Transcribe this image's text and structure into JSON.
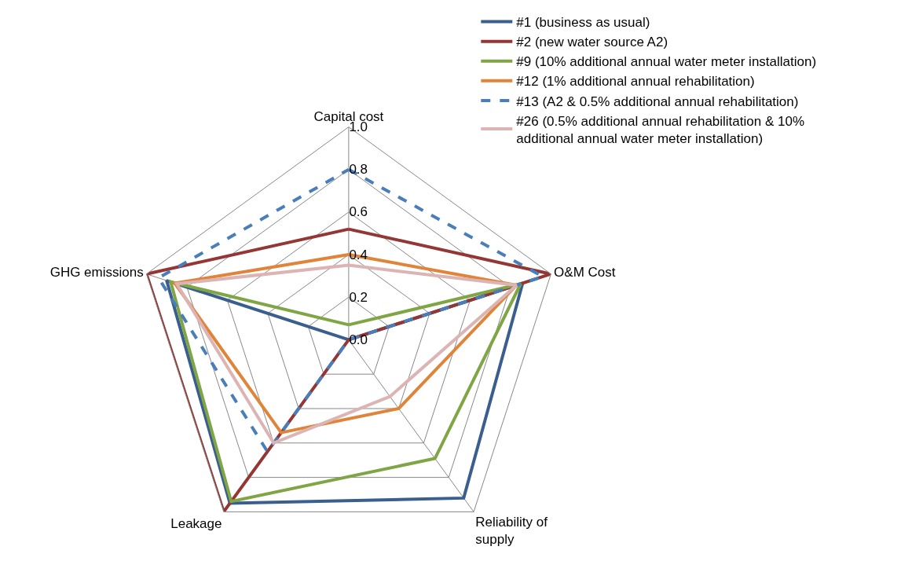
{
  "chart_data": {
    "type": "radar",
    "categories": [
      "Capital cost",
      "O&M Cost",
      "Reliability of supply",
      "Leakage",
      "GHG emissions"
    ],
    "series": [
      {
        "name": "#1 (business as usual)",
        "color": "#3a5f8f",
        "values": [
          0,
          0.86,
          0.92,
          0.95,
          0.9
        ]
      },
      {
        "name": "#2 (new water source A2)",
        "color": "#943634",
        "values": [
          0.52,
          1.0,
          0,
          1.0,
          1.0
        ]
      },
      {
        "name": "#9 (10% additional annual water meter installation)",
        "color": "#7fa544",
        "values": [
          0.07,
          0.85,
          0.69,
          0.94,
          0.88
        ]
      },
      {
        "name": "#12 (1% additional annual rehabilitation)",
        "color": "#e0843a",
        "values": [
          0.4,
          0.83,
          0.4,
          0.54,
          0.86
        ]
      },
      {
        "name": "#13 (A2 & 0.5% additional annual rehabilitation)",
        "color": "#4a7ebb",
        "line_style": "dashed",
        "values": [
          0.8,
          0.96,
          0,
          0.65,
          0.94
        ]
      },
      {
        "name": "#26 (0.5% additional annual rehabilitation & 10% additional annual water meter installation)",
        "color": "#ddb4b4",
        "values": [
          0.35,
          0.83,
          0.33,
          0.6,
          0.85
        ]
      }
    ],
    "ylim": [
      0,
      1
    ],
    "yticks": [
      {
        "value": 0,
        "label": "0.0"
      },
      {
        "value": 0.2,
        "label": "0.2"
      },
      {
        "value": 0.4,
        "label": "0.4"
      },
      {
        "value": 0.6,
        "label": "0.6"
      },
      {
        "value": 0.8,
        "label": "0.8"
      },
      {
        "value": 1,
        "label": "1.0"
      }
    ],
    "grid": true,
    "legend": "top right",
    "line_style": "solid",
    "marker": "none"
  }
}
